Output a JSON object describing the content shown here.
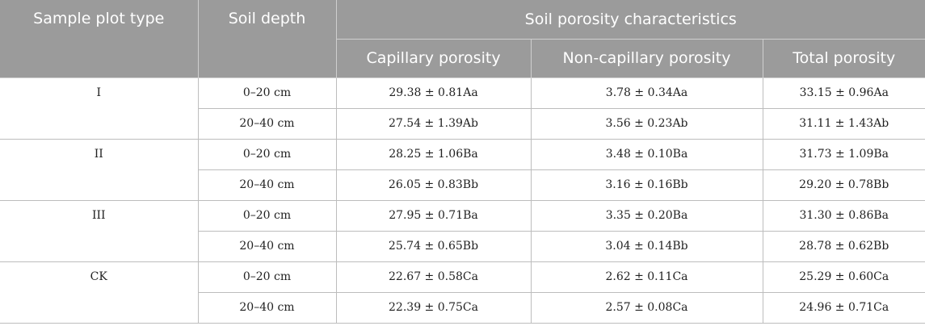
{
  "header": {
    "sample_plot_type": "Sample plot type",
    "soil_depth": "Soil depth",
    "group": "Soil porosity characteristics",
    "capillary": "Capillary porosity",
    "non_capillary": "Non-capillary porosity",
    "total": "Total porosity"
  },
  "groups": [
    {
      "type": "I",
      "rows": [
        {
          "depth": "0–20 cm",
          "capillary": "29.38 ± 0.81Aa",
          "non_capillary": "3.78 ± 0.34Aa",
          "total": "33.15 ± 0.96Aa"
        },
        {
          "depth": "20–40 cm",
          "capillary": "27.54 ± 1.39Ab",
          "non_capillary": "3.56 ± 0.23Ab",
          "total": "31.11 ± 1.43Ab"
        }
      ]
    },
    {
      "type": "II",
      "rows": [
        {
          "depth": "0–20 cm",
          "capillary": "28.25 ± 1.06Ba",
          "non_capillary": "3.48 ± 0.10Ba",
          "total": "31.73 ± 1.09Ba"
        },
        {
          "depth": "20–40 cm",
          "capillary": "26.05 ± 0.83Bb",
          "non_capillary": "3.16 ± 0.16Bb",
          "total": "29.20 ± 0.78Bb"
        }
      ]
    },
    {
      "type": "III",
      "rows": [
        {
          "depth": "0–20 cm",
          "capillary": "27.95 ± 0.71Ba",
          "non_capillary": "3.35 ± 0.20Ba",
          "total": "31.30 ± 0.86Ba"
        },
        {
          "depth": "20–40 cm",
          "capillary": "25.74 ± 0.65Bb",
          "non_capillary": "3.04 ± 0.14Bb",
          "total": "28.78 ± 0.62Bb"
        }
      ]
    },
    {
      "type": "CK",
      "rows": [
        {
          "depth": "0–20 cm",
          "capillary": "22.67 ± 0.58Ca",
          "non_capillary": "2.62 ± 0.11Ca",
          "total": "25.29 ± 0.60Ca"
        },
        {
          "depth": "20–40 cm",
          "capillary": "22.39 ± 0.75Ca",
          "non_capillary": "2.57 ± 0.08Ca",
          "total": "24.96 ± 0.71Ca"
        }
      ]
    }
  ]
}
